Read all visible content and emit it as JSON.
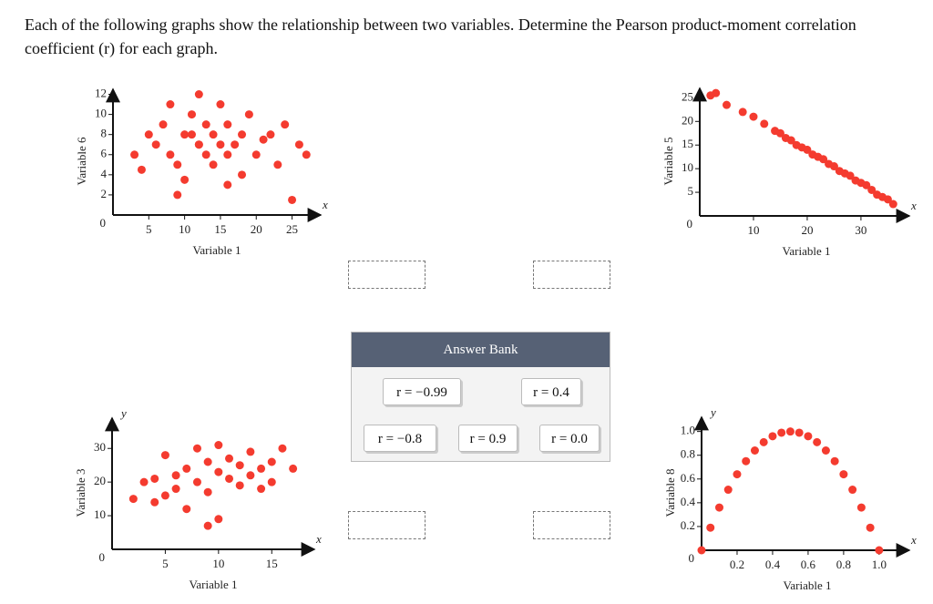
{
  "question": "Each of the following graphs show the relationship between two variables. Determine the Pearson product-moment correlation coefficient (r) for each graph.",
  "charts": [
    {
      "type": "scatter",
      "x_label": "Variable 1",
      "y_label": "Variable 6",
      "origin_label": "0",
      "x_axis_symbol": "x",
      "color": "#f43b2f",
      "xlim": [
        0,
        29
      ],
      "ylim": [
        0,
        12.5
      ],
      "xticks": [
        5,
        10,
        15,
        20,
        25
      ],
      "yticks": [
        2,
        4,
        6,
        8,
        10,
        12
      ],
      "x": [
        3,
        4,
        5,
        6,
        7,
        8,
        8,
        9,
        10,
        10,
        11,
        12,
        12,
        13,
        13,
        14,
        14,
        15,
        15,
        16,
        16,
        17,
        18,
        18,
        19,
        20,
        21,
        22,
        23,
        24,
        26,
        27,
        25,
        9,
        12,
        16,
        11
      ],
      "y": [
        6,
        4.5,
        8,
        7,
        9,
        6,
        11,
        5,
        8,
        3.5,
        10,
        7,
        12,
        6,
        9,
        8,
        5,
        7,
        11,
        6,
        9,
        7,
        8,
        4,
        10,
        6,
        7.5,
        8,
        5,
        9,
        7,
        6,
        1.5,
        2,
        7,
        3,
        8
      ]
    },
    {
      "type": "scatter",
      "x_label": "Variable 1",
      "y_label": "Variable 5",
      "origin_label": "0",
      "x_axis_symbol": "x",
      "color": "#f43b2f",
      "xlim": [
        0,
        39
      ],
      "ylim": [
        0,
        27
      ],
      "xticks": [
        10,
        20,
        30
      ],
      "yticks": [
        5,
        10,
        15,
        20,
        25
      ],
      "x": [
        2,
        3,
        5,
        8,
        10,
        12,
        14,
        15,
        16,
        17,
        18,
        19,
        20,
        21,
        22,
        23,
        24,
        25,
        26,
        27,
        28,
        29,
        30,
        31,
        32,
        33,
        34,
        35,
        36
      ],
      "y": [
        25.5,
        26,
        23.5,
        22,
        21,
        19.5,
        18,
        17.5,
        16.5,
        16,
        15,
        14.5,
        14,
        13,
        12.5,
        12,
        11,
        10.5,
        9.5,
        9,
        8.5,
        7.5,
        7,
        6.5,
        5.5,
        4.5,
        4,
        3.5,
        2.5
      ]
    },
    {
      "type": "scatter",
      "x_label": "Variable 1",
      "y_label": "Variable 3",
      "origin_label": "0",
      "x_axis_symbol": "x",
      "y_axis_symbol": "y",
      "color": "#f43b2f",
      "xlim": [
        0,
        19
      ],
      "ylim": [
        0,
        39
      ],
      "xticks": [
        5,
        10,
        15
      ],
      "yticks": [
        10,
        20,
        30
      ],
      "x": [
        2,
        3,
        4,
        4,
        5,
        5,
        6,
        6,
        7,
        7,
        8,
        8,
        9,
        9,
        10,
        10,
        11,
        11,
        12,
        12,
        13,
        13,
        14,
        14,
        15,
        15,
        16,
        17,
        9,
        10
      ],
      "y": [
        15,
        20,
        21,
        14,
        16,
        28,
        22,
        18,
        24,
        12,
        30,
        20,
        26,
        17,
        31,
        23,
        21,
        27,
        25,
        19,
        29,
        22,
        24,
        18,
        26,
        20,
        30,
        24,
        7,
        9
      ]
    },
    {
      "type": "scatter",
      "x_label": "Variable 1",
      "y_label": "Variable 8",
      "origin_label": "0",
      "x_axis_symbol": "x",
      "y_axis_symbol": "y",
      "color": "#f43b2f",
      "xlim": [
        0,
        1.17
      ],
      "ylim": [
        0,
        1.12
      ],
      "xticks": [
        0.2,
        0.4,
        0.6,
        0.8,
        {
          "value": 1,
          "label": "1.0"
        }
      ],
      "yticks": [
        0.2,
        0.4,
        0.6,
        0.8,
        {
          "value": 1,
          "label": "1.0"
        }
      ],
      "x": [
        0,
        0.05,
        0.1,
        0.15,
        0.2,
        0.25,
        0.3,
        0.35,
        0.4,
        0.45,
        0.5,
        0.55,
        0.6,
        0.65,
        0.7,
        0.75,
        0.8,
        0.85,
        0.9,
        0.95,
        1
      ],
      "y": [
        0,
        0.19,
        0.36,
        0.51,
        0.64,
        0.75,
        0.84,
        0.91,
        0.96,
        0.99,
        1,
        0.99,
        0.96,
        0.91,
        0.84,
        0.75,
        0.64,
        0.51,
        0.36,
        0.19,
        0
      ]
    }
  ],
  "answer_bank": {
    "title": "Answer Bank",
    "options": [
      "r = −0.99",
      "r = 0.4",
      "r = −0.8",
      "r = 0.9",
      "r = 0.0"
    ]
  }
}
